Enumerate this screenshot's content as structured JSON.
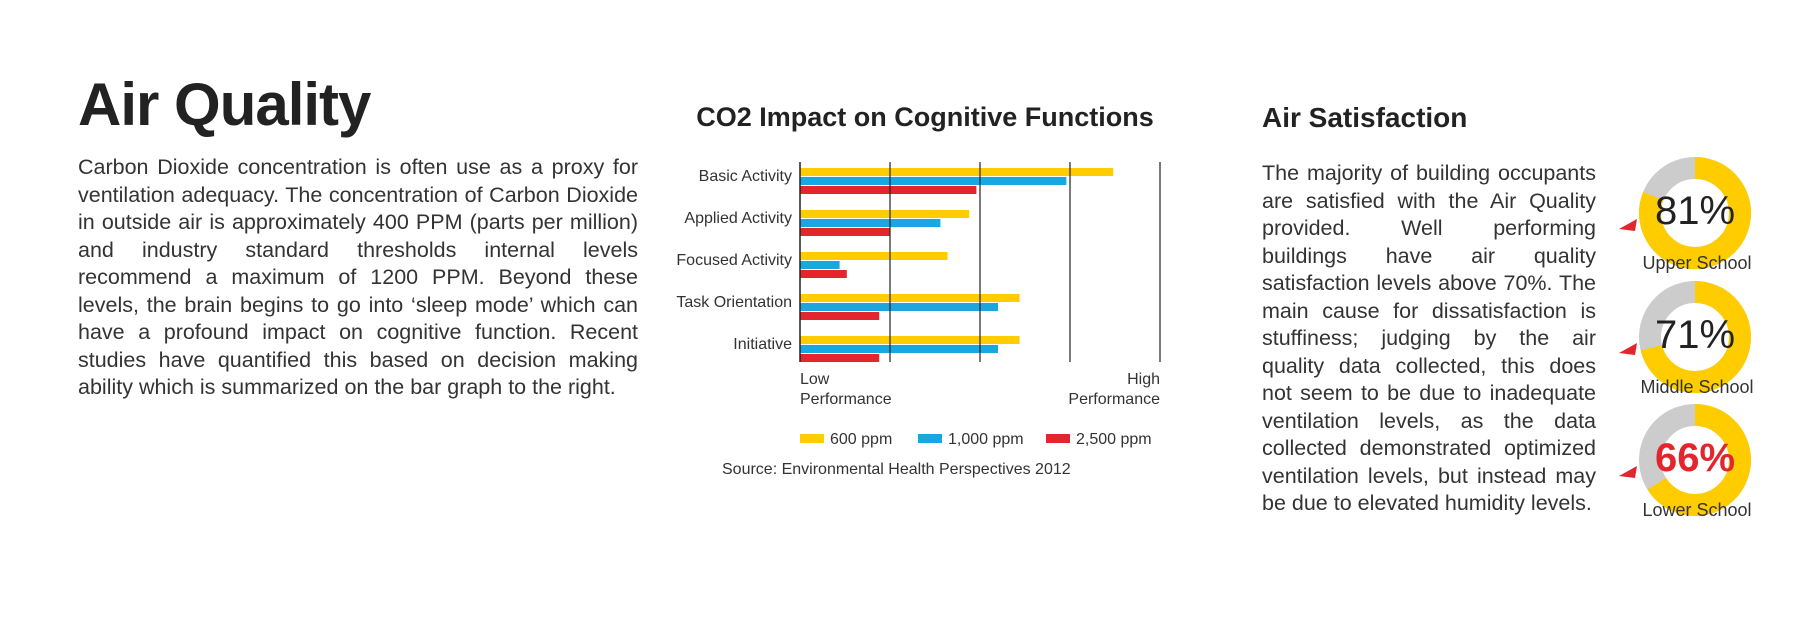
{
  "left": {
    "title": "Air Quality",
    "body": "Carbon Dioxide concentration is often use as a proxy for ventilation adequacy. The concentration of Carbon Dioxide in outside air is approximately 400 PPM (parts per million) and industry standard thresholds internal levels recommend a maximum of 1200 PPM. Beyond these levels, the brain begins to go into ‘sleep mode’ which can have a profound impact on cognitive function. Recent studies have quantified this based on decision making ability which is summarized on the bar graph to the right."
  },
  "chart_data": {
    "type": "bar",
    "orientation": "horizontal",
    "title": "CO2 Impact on Cognitive Functions",
    "categories": [
      "Basic Activity",
      "Applied Activity",
      "Focused Activity",
      "Task Orientation",
      "Initiative"
    ],
    "series": [
      {
        "name": "600 ppm",
        "color": "#ffcc00",
        "values": [
          0.87,
          0.47,
          0.41,
          0.61,
          0.61
        ]
      },
      {
        "name": "1,000 ppm",
        "color": "#1aa7df",
        "values": [
          0.74,
          0.39,
          0.11,
          0.55,
          0.55
        ]
      },
      {
        "name": "2,500 ppm",
        "color": "#e3262d",
        "values": [
          0.49,
          0.25,
          0.13,
          0.22,
          0.22
        ]
      }
    ],
    "xlim": [
      0,
      1
    ],
    "gridlines": [
      0.25,
      0.5,
      0.75,
      1.0
    ],
    "axis_low_label": [
      "Low",
      "Performance"
    ],
    "axis_high_label": [
      "High",
      "Performance"
    ],
    "legend_position": "bottom",
    "source": "Source: Environmental Health Perspectives 2012"
  },
  "right": {
    "title": "Air Satisfaction",
    "body": "The majority of building occupants are satisfied with the Air Quality provided. Well performing buildings have air quality satisfaction levels above 70%. The main cause for dissatisfaction is stuffiness; judging by the air quality data collected, this does not seem to be due to inadequate ventilation levels, as the data collected demonstrated optimized ventilation levels, but instead may be due to elevated humidity levels.",
    "donuts": [
      {
        "percent_label": "81%",
        "value": 81,
        "label": "Upper School",
        "alert": false
      },
      {
        "percent_label": "71%",
        "value": 71,
        "label": "Middle School",
        "alert": false
      },
      {
        "percent_label": "66%",
        "value": 66,
        "label": "Lower School",
        "alert": true
      }
    ],
    "colors": {
      "fill": "#ffcc00",
      "track": "#cccccc",
      "pointer": "#e3262d",
      "alert_text": "#e3262d"
    }
  }
}
